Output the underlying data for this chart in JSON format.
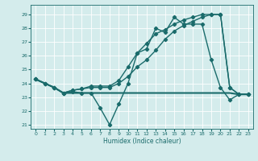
{
  "xlabel": "Humidex (Indice chaleur)",
  "xlim": [
    -0.5,
    23.5
  ],
  "ylim": [
    20.7,
    29.7
  ],
  "yticks": [
    21,
    22,
    23,
    24,
    25,
    26,
    27,
    28,
    29
  ],
  "xticks": [
    0,
    1,
    2,
    3,
    4,
    5,
    6,
    7,
    8,
    9,
    10,
    11,
    12,
    13,
    14,
    15,
    16,
    17,
    18,
    19,
    20,
    21,
    22,
    23
  ],
  "bg_color": "#d4ecec",
  "line_color": "#1a6b6b",
  "grid_color": "#ffffff",
  "line1": [
    24.3,
    24.0,
    23.7,
    23.3,
    23.4,
    23.3,
    23.3,
    22.2,
    21.0,
    22.5,
    24.0,
    26.2,
    26.5,
    28.0,
    27.7,
    28.8,
    28.3,
    28.3,
    28.3,
    25.7,
    23.7,
    22.8,
    23.2,
    23.2
  ],
  "line2": [
    24.3,
    24.0,
    23.7,
    23.3,
    23.3,
    23.3,
    23.3,
    23.3,
    23.3,
    23.3,
    23.3,
    23.3,
    23.3,
    23.3,
    23.3,
    23.3,
    23.3,
    23.3,
    23.3,
    23.3,
    23.3,
    23.3,
    23.2,
    23.2
  ],
  "line3": [
    24.3,
    24.0,
    23.7,
    23.3,
    23.5,
    23.6,
    23.7,
    23.7,
    23.7,
    24.0,
    24.5,
    25.2,
    25.7,
    26.4,
    27.2,
    27.8,
    28.2,
    28.5,
    28.8,
    29.0,
    29.0,
    23.7,
    23.2,
    23.2
  ],
  "line4": [
    24.3,
    24.0,
    23.7,
    23.3,
    23.5,
    23.6,
    23.8,
    23.8,
    23.8,
    24.2,
    25.2,
    26.2,
    26.9,
    27.6,
    27.9,
    28.3,
    28.6,
    28.8,
    29.0,
    29.0,
    29.0,
    23.7,
    23.2,
    23.2
  ]
}
